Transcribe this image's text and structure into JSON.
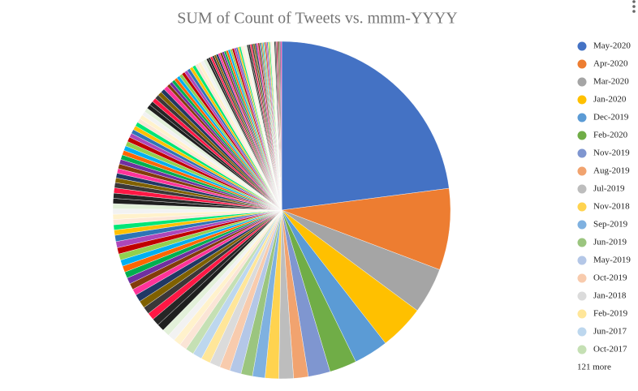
{
  "chart_data": {
    "type": "pie",
    "title": "SUM of Count of Tweets vs. mmm-YYYY",
    "categories": [
      "May-2020",
      "Apr-2020",
      "Mar-2020",
      "Jan-2020",
      "Dec-2019",
      "Feb-2020",
      "Nov-2019",
      "Aug-2019",
      "Jul-2019",
      "Nov-2018",
      "Sep-2019",
      "Jun-2019",
      "May-2019",
      "Oct-2019",
      "Jan-2018",
      "Feb-2019",
      "Jun-2017",
      "Oct-2017",
      null,
      null,
      null,
      null,
      null,
      null,
      null,
      null,
      null,
      null,
      null,
      null,
      null,
      null,
      null,
      null,
      null,
      null,
      null,
      null,
      null,
      null,
      null,
      null,
      null,
      null,
      null,
      null,
      null,
      null,
      null,
      null,
      null,
      null,
      null,
      null,
      null,
      null,
      null,
      null,
      null,
      null,
      null,
      null,
      null,
      null,
      null,
      null,
      null,
      null,
      null,
      null,
      null,
      null,
      null,
      null,
      null,
      null,
      null,
      null,
      null,
      null,
      null,
      null,
      null,
      null,
      null,
      null,
      null,
      null,
      null,
      null,
      null,
      null,
      null,
      null,
      null,
      null,
      null,
      null,
      null,
      null,
      null,
      null,
      null,
      null,
      null,
      null,
      null,
      null,
      null,
      null,
      null,
      null,
      null,
      null,
      null,
      null,
      null,
      null,
      null,
      null,
      null,
      null,
      null,
      null,
      null,
      null,
      null,
      null,
      null,
      null,
      null,
      null,
      null,
      null,
      null,
      null,
      null,
      null,
      null
    ],
    "values": [
      22.9,
      7.8,
      4.4,
      4.3,
      3.3,
      2.6,
      2.1,
      1.4,
      1.4,
      1.3,
      1.2,
      1.1,
      1.1,
      1.0,
      1.0,
      0.9,
      0.9,
      0.8,
      0.7,
      0.7,
      0.7,
      0.7,
      0.7,
      0.7,
      0.7,
      0.7,
      0.7,
      0.7,
      0.6,
      0.6,
      0.6,
      0.6,
      0.6,
      0.6,
      0.6,
      0.6,
      0.6,
      0.6,
      0.5,
      0.5,
      0.5,
      0.5,
      0.5,
      0.5,
      0.5,
      0.5,
      0.5,
      0.5,
      0.45,
      0.45,
      0.45,
      0.45,
      0.45,
      0.45,
      0.45,
      0.45,
      0.45,
      0.45,
      0.4,
      0.4,
      0.4,
      0.4,
      0.4,
      0.4,
      0.4,
      0.4,
      0.4,
      0.4,
      0.4,
      0.4,
      0.4,
      0.4,
      0.4,
      0.3,
      0.3,
      0.3,
      0.3,
      0.3,
      0.3,
      0.3,
      0.3,
      0.3,
      0.3,
      0.3,
      0.3,
      0.3,
      0.3,
      0.3,
      0.2,
      0.2,
      0.2,
      0.2,
      0.2,
      0.2,
      0.2,
      0.2,
      0.2,
      0.2,
      0.2,
      0.2,
      0.2,
      0.2,
      0.2,
      0.15,
      0.15,
      0.15,
      0.15,
      0.15,
      0.15,
      0.15,
      0.15,
      0.15,
      0.15,
      0.15,
      0.15,
      0.15,
      0.15,
      0.15,
      0.1,
      0.1,
      0.1,
      0.1,
      0.1,
      0.1,
      0.1,
      0.1,
      0.1,
      0.1,
      0.1,
      0.1,
      0.1,
      0.1,
      0.1,
      0.1,
      0.1,
      0.1,
      0.1,
      0.1,
      0.1
    ],
    "colors": [
      "#4472c4",
      "#ed7d31",
      "#a5a5a5",
      "#ffc000",
      "#5b9bd5",
      "#70ad47",
      "#7f96d0",
      "#f1a36f",
      "#bdbdbd",
      "#ffd34f",
      "#7fb1e0",
      "#9bc57f",
      "#b4c7e7",
      "#f8cbad",
      "#dbdbdb",
      "#ffe699",
      "#bdd7ee",
      "#c5e0b4"
    ],
    "other_colors": [
      "#fbe5d6",
      "#fff2cc",
      "#f2f2f2",
      "#e2f0d9",
      "#1f1f1f",
      "#262626",
      "#ff1744",
      "#3b3838",
      "#7f6000",
      "#203864",
      "#ff3399",
      "#833c0b",
      "#7030a0",
      "#00b050",
      "#ff6600",
      "#00b0f0",
      "#92d050",
      "#c00000",
      "#ad47ba",
      "#2e75b6",
      "#ffc000",
      "#00e676"
    ],
    "legend_position": "right",
    "legend_more": "121 more"
  }
}
